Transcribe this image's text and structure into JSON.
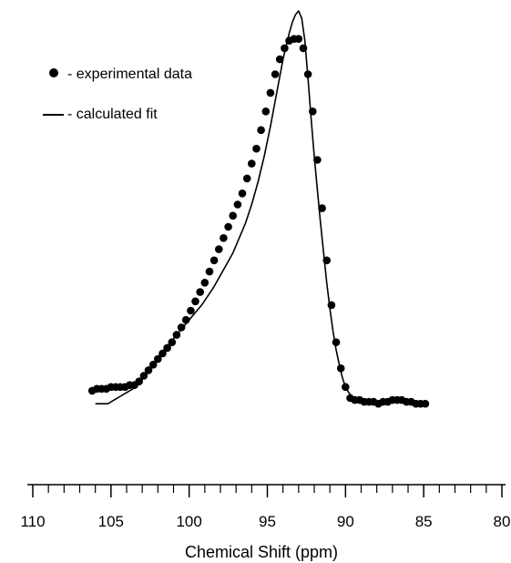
{
  "chart_data": {
    "type": "scatter",
    "title": "",
    "xlabel": "Chemical Shift (ppm)",
    "ylabel": "",
    "x_reversed": true,
    "xlim": [
      110,
      80
    ],
    "ylim": [
      -0.1,
      1.05
    ],
    "grid": false,
    "legend_position": "top-left",
    "x_major_ticks": [
      110,
      105,
      100,
      95,
      90,
      85,
      80
    ],
    "x_tick_labels": [
      "110",
      "105",
      "100",
      "95",
      "90",
      "85",
      "80"
    ],
    "x_minor_step": 1,
    "series": [
      {
        "name": "- experimental data",
        "kind": "markers",
        "color": "#000000",
        "x": [
          106.2,
          105.9,
          105.6,
          105.3,
          105.0,
          104.7,
          104.4,
          104.1,
          103.8,
          103.5,
          103.2,
          102.9,
          102.6,
          102.3,
          102.0,
          101.7,
          101.4,
          101.1,
          100.8,
          100.5,
          100.2,
          99.9,
          99.6,
          99.3,
          99.0,
          98.7,
          98.4,
          98.1,
          97.8,
          97.5,
          97.2,
          96.9,
          96.6,
          96.3,
          96.0,
          95.7,
          95.4,
          95.1,
          94.8,
          94.5,
          94.2,
          93.9,
          93.6,
          93.3,
          93.0,
          92.7,
          92.4,
          92.1,
          91.8,
          91.5,
          91.2,
          90.9,
          90.6,
          90.3,
          90.0,
          89.7,
          89.4,
          89.1,
          88.8,
          88.5,
          88.2,
          87.9,
          87.6,
          87.3,
          87.0,
          86.7,
          86.4,
          86.1,
          85.8,
          85.5,
          85.2,
          84.9
        ],
        "y": [
          0.03,
          0.035,
          0.035,
          0.035,
          0.04,
          0.04,
          0.04,
          0.04,
          0.045,
          0.045,
          0.055,
          0.07,
          0.085,
          0.1,
          0.115,
          0.13,
          0.145,
          0.16,
          0.18,
          0.2,
          0.22,
          0.245,
          0.27,
          0.295,
          0.32,
          0.35,
          0.38,
          0.41,
          0.44,
          0.47,
          0.5,
          0.53,
          0.56,
          0.6,
          0.64,
          0.68,
          0.73,
          0.78,
          0.83,
          0.88,
          0.92,
          0.95,
          0.97,
          0.975,
          0.975,
          0.95,
          0.88,
          0.78,
          0.65,
          0.52,
          0.38,
          0.26,
          0.16,
          0.09,
          0.04,
          0.01,
          0.005,
          0.005,
          0.0,
          0.0,
          0.0,
          -0.005,
          0.0,
          0.0,
          0.005,
          0.005,
          0.005,
          0.0,
          0.0,
          -0.005,
          -0.005,
          -0.005
        ]
      },
      {
        "name": "- calculated fit",
        "kind": "line",
        "color": "#000000",
        "x": [
          106.0,
          105.6,
          105.2,
          104.8,
          104.4,
          104.0,
          103.6,
          103.2,
          102.8,
          102.4,
          102.0,
          101.6,
          101.2,
          100.8,
          100.4,
          100.0,
          99.6,
          99.2,
          98.8,
          98.4,
          98.0,
          97.6,
          97.2,
          96.8,
          96.4,
          96.0,
          95.6,
          95.2,
          94.8,
          94.4,
          94.0,
          93.6,
          93.4,
          93.2,
          93.0,
          92.8,
          92.6,
          92.4,
          92.2,
          92.0,
          91.8,
          91.6,
          91.4,
          91.2,
          91.0,
          90.8,
          90.6,
          90.4,
          90.2,
          90.0,
          89.8,
          89.6,
          89.4,
          89.0
        ],
        "y": [
          -0.005,
          -0.005,
          -0.005,
          0.005,
          0.015,
          0.025,
          0.035,
          0.05,
          0.07,
          0.095,
          0.12,
          0.14,
          0.16,
          0.18,
          0.2,
          0.22,
          0.24,
          0.26,
          0.285,
          0.31,
          0.34,
          0.37,
          0.4,
          0.44,
          0.48,
          0.53,
          0.59,
          0.66,
          0.74,
          0.83,
          0.92,
          0.99,
          1.02,
          1.04,
          1.05,
          1.03,
          0.97,
          0.87,
          0.76,
          0.66,
          0.57,
          0.48,
          0.4,
          0.32,
          0.25,
          0.19,
          0.14,
          0.1,
          0.065,
          0.04,
          0.025,
          0.015,
          0.005,
          0.0
        ]
      }
    ]
  }
}
